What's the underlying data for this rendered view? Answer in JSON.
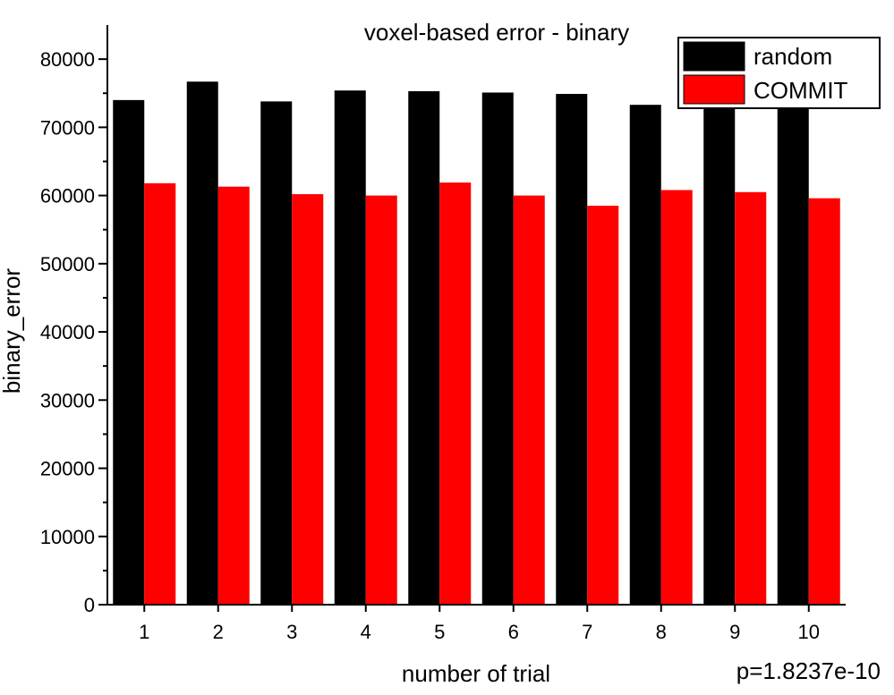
{
  "chart_data": {
    "type": "bar",
    "title": "voxel-based error - binary",
    "xlabel": "number of trial",
    "ylabel": "binary_error",
    "categories": [
      "1",
      "2",
      "3",
      "4",
      "5",
      "6",
      "7",
      "8",
      "9",
      "10"
    ],
    "series": [
      {
        "name": "random",
        "color": "#000000",
        "values": [
          74000,
          76700,
          73800,
          75400,
          75300,
          75100,
          74900,
          73300,
          73300,
          74000
        ]
      },
      {
        "name": "COMMIT",
        "color": "#ff0000",
        "values": [
          61800,
          61300,
          60200,
          60000,
          61900,
          60000,
          58500,
          60800,
          60500,
          59600
        ]
      }
    ],
    "ylim": [
      0,
      85000
    ],
    "yticks": [
      0,
      10000,
      20000,
      30000,
      40000,
      50000,
      60000,
      70000,
      80000
    ],
    "ytick_labels": [
      "0",
      "10000",
      "20000",
      "30000",
      "40000",
      "50000",
      "60000",
      "70000",
      "80000"
    ],
    "grid": false,
    "legend_position": "top-right",
    "annotation": "p=1.8237e-10"
  }
}
